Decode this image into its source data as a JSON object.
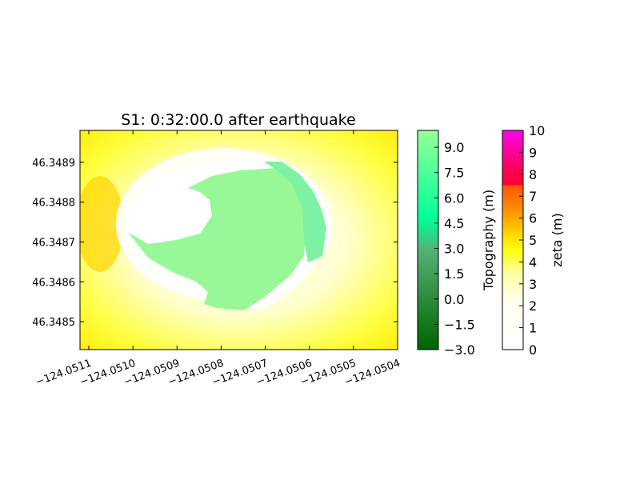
{
  "chart_data": {
    "type": "heatmap",
    "title": "S1: 0:32:00.0 after earthquake",
    "xlabel": "",
    "ylabel": "",
    "x_tick_labels": [
      "−124.0511",
      "−124.0510",
      "−124.0509",
      "−124.0508",
      "−124.0507",
      "−124.0506",
      "−124.0505",
      "−124.0504"
    ],
    "x_ticks": [
      -124.0511,
      -124.051,
      -124.0509,
      -124.0508,
      -124.0507,
      -124.0506,
      -124.0505,
      -124.0504
    ],
    "xlim": [
      -124.05112,
      -124.0504
    ],
    "y_tick_labels": [
      "46.3485",
      "46.3486",
      "46.3487",
      "46.3488",
      "46.3489"
    ],
    "y_ticks": [
      46.3485,
      46.3486,
      46.3487,
      46.3488,
      46.3489
    ],
    "ylim": [
      46.34843,
      46.34898
    ],
    "grid": false,
    "colorbars": [
      {
        "label": "Topography (m)",
        "tick_labels": [
          "−3.0",
          "−1.5",
          "0.0",
          "1.5",
          "3.0",
          "4.5",
          "6.0",
          "7.5",
          "9.0"
        ],
        "ticks": [
          -3.0,
          -1.5,
          0.0,
          1.5,
          3.0,
          4.5,
          6.0,
          7.5,
          9.0
        ],
        "range": [
          -3.0,
          10.0
        ],
        "colors": [
          "#006400",
          "#00ff99",
          "#9aff9a"
        ]
      },
      {
        "label": "zeta (m)",
        "tick_labels": [
          "0",
          "1",
          "2",
          "3",
          "4",
          "5",
          "6",
          "7",
          "8",
          "9",
          "10"
        ],
        "ticks": [
          0,
          1,
          2,
          3,
          4,
          5,
          6,
          7,
          8,
          9,
          10
        ],
        "range": [
          0,
          10
        ],
        "colors": [
          "#ffffff",
          "#ffff00",
          "#ff6600",
          "#ff0000",
          "#ff00ff"
        ]
      }
    ]
  }
}
